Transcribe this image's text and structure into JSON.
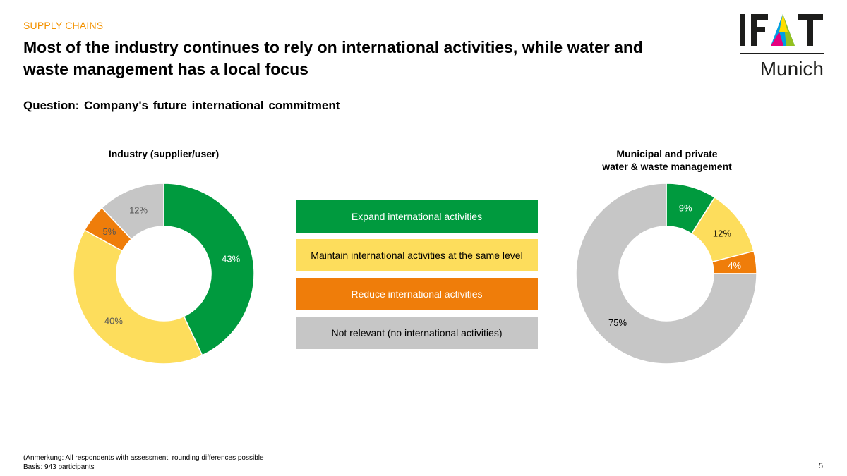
{
  "header": {
    "section": "SUPPLY CHAINS",
    "title_line1": "Most of the industry continues to rely on international activities, while water and",
    "title_line2": "waste management has a local focus",
    "question": "Question: Company's future international commitment"
  },
  "logo": {
    "top": "IFAT",
    "bottom": "Munich"
  },
  "colors": {
    "expand": "#009a3e",
    "maintain": "#fddd5c",
    "reduce": "#ef7d0a",
    "not_relevant": "#c6c6c6",
    "accent": "#f39200"
  },
  "legend": [
    {
      "label": "Expand international activities",
      "color": "#009a3e",
      "text_color": "#ffffff"
    },
    {
      "label": "Maintain international activities at the same level",
      "color": "#fddd5c",
      "text_color": "#000000"
    },
    {
      "label": "Reduce international activities",
      "color": "#ef7d0a",
      "text_color": "#ffffff"
    },
    {
      "label": "Not relevant (no international activities)",
      "color": "#c6c6c6",
      "text_color": "#000000"
    }
  ],
  "chart_data": [
    {
      "type": "pie",
      "title": "Industry (supplier/user)",
      "categories": [
        "Expand international activities",
        "Maintain international activities at the same level",
        "Reduce international activities",
        "Not relevant (no international activities)"
      ],
      "values": [
        43,
        40,
        5,
        12
      ],
      "labels": [
        "43%",
        "40%",
        "5%",
        "12%"
      ],
      "colors": [
        "#009a3e",
        "#fddd5c",
        "#ef7d0a",
        "#c6c6c6"
      ],
      "label_colors": [
        "#ffffff",
        "#555555",
        "#555555",
        "#555555"
      ]
    },
    {
      "type": "pie",
      "title_line1": "Municipal and private",
      "title_line2": "water & waste management",
      "categories": [
        "Expand international activities",
        "Maintain international activities at the same level",
        "Reduce international activities",
        "Not relevant (no international activities)"
      ],
      "values": [
        9,
        12,
        4,
        75
      ],
      "labels": [
        "9%",
        "12%",
        "4%",
        "75%"
      ],
      "colors": [
        "#009a3e",
        "#fddd5c",
        "#ef7d0a",
        "#c6c6c6"
      ],
      "label_colors": [
        "#ffffff",
        "#000000",
        "#ffffff",
        "#000000"
      ]
    }
  ],
  "footer": {
    "note": "(Anmerkung: All respondents with assessment; rounding differences possible",
    "basis": "Basis: 943 participants",
    "page": "5"
  }
}
